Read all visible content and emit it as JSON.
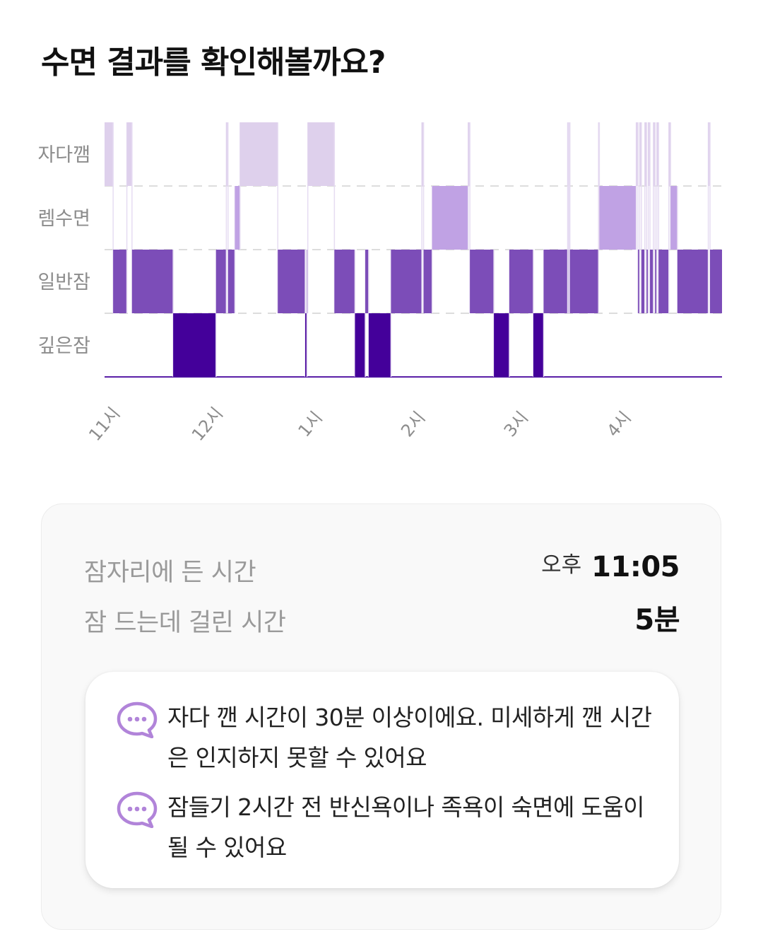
{
  "header": {
    "title": "수면 결과를 확인해볼까요?"
  },
  "chart_data": {
    "type": "step",
    "stages": [
      "자다깸",
      "렘수면",
      "일반잠",
      "깊은잠"
    ],
    "x_tick_labels": [
      "11시",
      "12시",
      "1시",
      "2시",
      "3시",
      "4시"
    ],
    "x_ticks_minutes_from_11pm": [
      0,
      60,
      120,
      180,
      240,
      300
    ],
    "x_range_minutes_from_11pm": [
      0,
      360
    ],
    "grid": "dashed horizontal lines between stages",
    "colors": {
      "자다깸": "#ded0ec",
      "렘수면": "#c0a2e4",
      "일반잠": "#7c4db8",
      "깊은잠": "#44009a"
    },
    "segments": [
      {
        "stage": "자다깸",
        "start_min": 0,
        "end_min": 5
      },
      {
        "stage": "일반잠",
        "start_min": 5,
        "end_min": 13
      },
      {
        "stage": "자다깸",
        "start_min": 13,
        "end_min": 16
      },
      {
        "stage": "일반잠",
        "start_min": 16,
        "end_min": 40
      },
      {
        "stage": "깊은잠",
        "start_min": 40,
        "end_min": 65
      },
      {
        "stage": "일반잠",
        "start_min": 65,
        "end_min": 71
      },
      {
        "stage": "자다깸",
        "start_min": 71,
        "end_min": 72
      },
      {
        "stage": "일반잠",
        "start_min": 72,
        "end_min": 76
      },
      {
        "stage": "렘수면",
        "start_min": 76,
        "end_min": 79
      },
      {
        "stage": "자다깸",
        "start_min": 79,
        "end_min": 101
      },
      {
        "stage": "일반잠",
        "start_min": 101,
        "end_min": 117
      },
      {
        "stage": "깊은잠",
        "start_min": 117,
        "end_min": 118
      },
      {
        "stage": "일반잠",
        "start_min": 118,
        "end_min": 118.5
      },
      {
        "stage": "자다깸",
        "start_min": 118.5,
        "end_min": 134
      },
      {
        "stage": "일반잠",
        "start_min": 134,
        "end_min": 146
      },
      {
        "stage": "깊은잠",
        "start_min": 146,
        "end_min": 152
      },
      {
        "stage": "일반잠",
        "start_min": 152,
        "end_min": 154
      },
      {
        "stage": "깊은잠",
        "start_min": 154,
        "end_min": 167
      },
      {
        "stage": "일반잠",
        "start_min": 167,
        "end_min": 185
      },
      {
        "stage": "자다깸",
        "start_min": 185,
        "end_min": 186
      },
      {
        "stage": "일반잠",
        "start_min": 186,
        "end_min": 191
      },
      {
        "stage": "렘수면",
        "start_min": 191,
        "end_min": 212
      },
      {
        "stage": "자다깸",
        "start_min": 212,
        "end_min": 213
      },
      {
        "stage": "일반잠",
        "start_min": 213,
        "end_min": 227
      },
      {
        "stage": "깊은잠",
        "start_min": 227,
        "end_min": 236
      },
      {
        "stage": "일반잠",
        "start_min": 236,
        "end_min": 250
      },
      {
        "stage": "깊은잠",
        "start_min": 250,
        "end_min": 256
      },
      {
        "stage": "일반잠",
        "start_min": 256,
        "end_min": 270
      },
      {
        "stage": "자다깸",
        "start_min": 270,
        "end_min": 270.5
      },
      {
        "stage": "일반잠",
        "start_min": 270.5,
        "end_min": 270.9
      },
      {
        "stage": "자다깸",
        "start_min": 270.9,
        "end_min": 271.3
      },
      {
        "stage": "일반잠",
        "start_min": 271.3,
        "end_min": 288
      },
      {
        "stage": "자다깸",
        "start_min": 288,
        "end_min": 288.5
      },
      {
        "stage": "렘수면",
        "start_min": 288.5,
        "end_min": 310
      },
      {
        "stage": "자다깸",
        "start_min": 310,
        "end_min": 311
      },
      {
        "stage": "일반잠",
        "start_min": 311,
        "end_min": 312
      },
      {
        "stage": "자다깸",
        "start_min": 312,
        "end_min": 313
      },
      {
        "stage": "일반잠",
        "start_min": 313,
        "end_min": 315
      },
      {
        "stage": "자다깸",
        "start_min": 315,
        "end_min": 316
      },
      {
        "stage": "일반잠",
        "start_min": 316,
        "end_min": 317
      },
      {
        "stage": "자다깸",
        "start_min": 317,
        "end_min": 318
      },
      {
        "stage": "일반잠",
        "start_min": 318,
        "end_min": 320
      },
      {
        "stage": "자다깸",
        "start_min": 320,
        "end_min": 321
      },
      {
        "stage": "일반잠",
        "start_min": 321,
        "end_min": 322
      },
      {
        "stage": "자다깸",
        "start_min": 322,
        "end_min": 323
      },
      {
        "stage": "일반잠",
        "start_min": 323,
        "end_min": 329
      },
      {
        "stage": "자다깸",
        "start_min": 329,
        "end_min": 330
      },
      {
        "stage": "렘수면",
        "start_min": 330,
        "end_min": 334
      },
      {
        "stage": "일반잠",
        "start_min": 334,
        "end_min": 352
      },
      {
        "stage": "자다깸",
        "start_min": 352,
        "end_min": 353
      },
      {
        "stage": "일반잠",
        "start_min": 353,
        "end_min": 360
      }
    ]
  },
  "summary": {
    "bedtime_label": "잠자리에 든 시간",
    "bedtime_prefix": "오후",
    "bedtime_value": "11:05",
    "latency_label": "잠 드는데 걸린 시간",
    "latency_value": "5분"
  },
  "tips": [
    {
      "icon": "chat-bubble-icon",
      "text": "자다 깬 시간이 30분 이상이에요. 미세하게 깬 시간은 인지하지 못할 수 있어요"
    },
    {
      "icon": "chat-bubble-icon",
      "text": "잠들기 2시간 전 반신욕이나 족욕이 숙면에 도움이 될 수 있어요"
    }
  ]
}
